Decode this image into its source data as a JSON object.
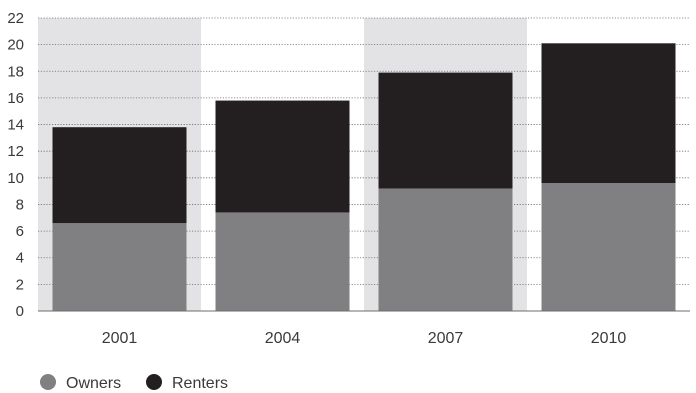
{
  "chart_data": {
    "type": "bar",
    "stacked": true,
    "categories": [
      "2001",
      "2004",
      "2007",
      "2010"
    ],
    "series": [
      {
        "name": "Owners",
        "values": [
          6.6,
          7.4,
          9.2,
          9.6
        ],
        "color": "#808083"
      },
      {
        "name": "Renters",
        "values": [
          7.2,
          8.4,
          8.7,
          10.5
        ],
        "color": "#231f20"
      }
    ],
    "ylim": [
      0,
      22
    ],
    "yticks": [
      "0",
      "2",
      "4",
      "6",
      "8",
      "10",
      "12",
      "14",
      "16",
      "18",
      "20",
      "22"
    ],
    "grid": "dotted horizontal",
    "shaded_bands": [
      "2001",
      "2007"
    ],
    "band_color": "#e3e3e5",
    "legend_position": "bottom-left"
  }
}
